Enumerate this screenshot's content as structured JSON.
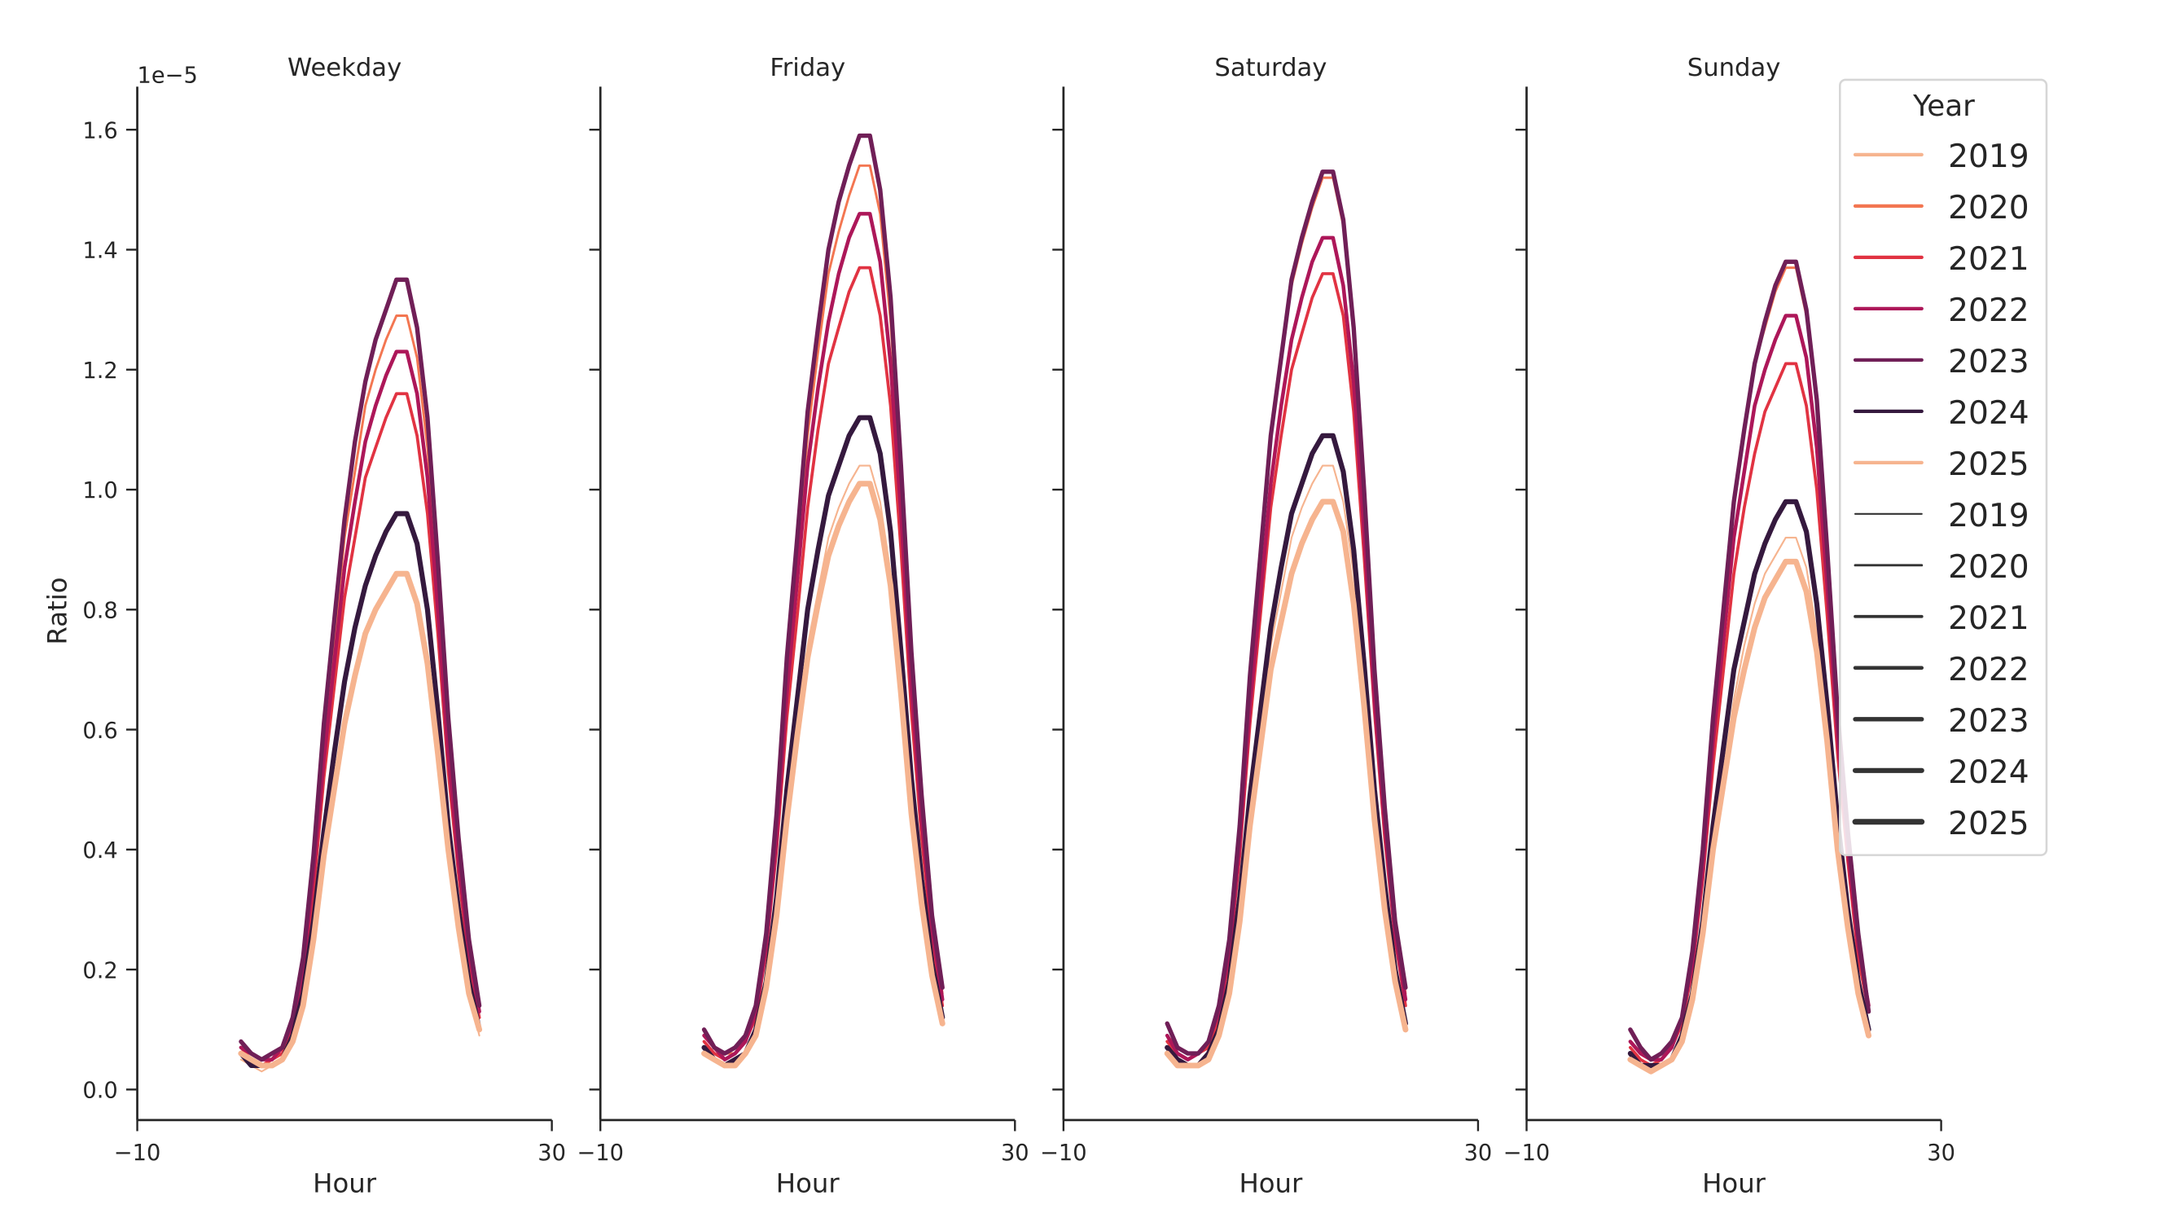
{
  "chart_data": {
    "type": "line",
    "ylabel": "Ratio",
    "xlabel": "Hour",
    "y_offset_label": "1e−5",
    "y_scale": 1e-05,
    "xlim": [
      -10,
      30
    ],
    "ylim": [
      -0.05,
      1.67
    ],
    "x_ticks": [
      -10,
      30
    ],
    "x_tick_labels": [
      "−10",
      "30"
    ],
    "y_ticks": [
      0.0,
      0.2,
      0.4,
      0.6,
      0.8,
      1.0,
      1.2,
      1.4,
      1.6
    ],
    "y_tick_labels": [
      "0.0",
      "0.2",
      "0.4",
      "0.6",
      "0.8",
      "1.0",
      "1.2",
      "1.4",
      "1.6"
    ],
    "grid": false,
    "legend": {
      "title": "Year",
      "placement": "top-right",
      "hue_entries": [
        {
          "label": "2019",
          "color": "#f6b48f"
        },
        {
          "label": "2020",
          "color": "#f37651"
        },
        {
          "label": "2021",
          "color": "#e13342"
        },
        {
          "label": "2022",
          "color": "#ad1759"
        },
        {
          "label": "2023",
          "color": "#701f57"
        },
        {
          "label": "2024",
          "color": "#35193e"
        },
        {
          "label": "2025",
          "color": "#f6b48f"
        }
      ],
      "size_entries": [
        {
          "label": "2019",
          "width": 1
        },
        {
          "label": "2020",
          "width": 1.5
        },
        {
          "label": "2021",
          "width": 2
        },
        {
          "label": "2022",
          "width": 2.5
        },
        {
          "label": "2023",
          "width": 3
        },
        {
          "label": "2024",
          "width": 3.5
        },
        {
          "label": "2025",
          "width": 4
        }
      ]
    },
    "x": [
      0,
      1,
      2,
      3,
      4,
      5,
      6,
      7,
      8,
      9,
      10,
      11,
      12,
      13,
      14,
      15,
      16,
      17,
      18,
      19,
      20,
      21,
      22,
      23
    ],
    "panels": [
      {
        "title": "Weekday",
        "series": [
          {
            "name": "2019",
            "values": [
              0.05,
              0.04,
              0.03,
              0.04,
              0.05,
              0.08,
              0.14,
              0.25,
              0.39,
              0.5,
              0.61,
              0.69,
              0.76,
              0.8,
              0.83,
              0.86,
              0.86,
              0.81,
              0.71,
              0.56,
              0.4,
              0.27,
              0.16,
              0.09
            ]
          },
          {
            "name": "2020",
            "values": [
              0.08,
              0.06,
              0.05,
              0.05,
              0.07,
              0.12,
              0.21,
              0.37,
              0.58,
              0.75,
              0.92,
              1.03,
              1.14,
              1.2,
              1.25,
              1.29,
              1.29,
              1.22,
              1.07,
              0.84,
              0.59,
              0.4,
              0.24,
              0.14
            ]
          },
          {
            "name": "2021",
            "values": [
              0.07,
              0.05,
              0.04,
              0.05,
              0.06,
              0.1,
              0.19,
              0.33,
              0.52,
              0.67,
              0.82,
              0.92,
              1.02,
              1.07,
              1.12,
              1.16,
              1.16,
              1.09,
              0.96,
              0.76,
              0.53,
              0.36,
              0.21,
              0.12
            ]
          },
          {
            "name": "2022",
            "values": [
              0.07,
              0.06,
              0.05,
              0.05,
              0.07,
              0.11,
              0.2,
              0.36,
              0.55,
              0.71,
              0.87,
              0.98,
              1.08,
              1.14,
              1.19,
              1.23,
              1.23,
              1.16,
              1.02,
              0.8,
              0.56,
              0.38,
              0.23,
              0.13
            ]
          },
          {
            "name": "2023",
            "values": [
              0.08,
              0.06,
              0.05,
              0.06,
              0.07,
              0.12,
              0.22,
              0.39,
              0.61,
              0.78,
              0.95,
              1.08,
              1.18,
              1.25,
              1.3,
              1.35,
              1.35,
              1.27,
              1.12,
              0.88,
              0.62,
              0.42,
              0.25,
              0.14
            ]
          },
          {
            "name": "2024",
            "values": [
              0.06,
              0.04,
              0.04,
              0.04,
              0.05,
              0.09,
              0.16,
              0.28,
              0.43,
              0.56,
              0.68,
              0.77,
              0.84,
              0.89,
              0.93,
              0.96,
              0.96,
              0.91,
              0.8,
              0.63,
              0.44,
              0.3,
              0.18,
              0.1
            ]
          },
          {
            "name": "2025",
            "values": [
              0.06,
              0.05,
              0.04,
              0.04,
              0.05,
              0.08,
              0.14,
              0.25,
              0.39,
              0.5,
              0.61,
              0.69,
              0.76,
              0.8,
              0.83,
              0.86,
              0.86,
              0.81,
              0.71,
              0.56,
              0.4,
              0.27,
              0.16,
              0.1
            ]
          }
        ]
      },
      {
        "title": "Friday",
        "series": [
          {
            "name": "2019",
            "values": [
              0.06,
              0.05,
              0.04,
              0.04,
              0.06,
              0.09,
              0.17,
              0.3,
              0.47,
              0.6,
              0.74,
              0.83,
              0.92,
              0.97,
              1.01,
              1.04,
              1.04,
              0.98,
              0.86,
              0.68,
              0.48,
              0.32,
              0.19,
              0.11
            ]
          },
          {
            "name": "2020",
            "values": [
              0.09,
              0.07,
              0.06,
              0.06,
              0.08,
              0.14,
              0.25,
              0.45,
              0.69,
              0.89,
              1.09,
              1.23,
              1.36,
              1.43,
              1.49,
              1.54,
              1.54,
              1.46,
              1.28,
              1.01,
              0.71,
              0.48,
              0.28,
              0.16
            ]
          },
          {
            "name": "2021",
            "values": [
              0.08,
              0.06,
              0.05,
              0.06,
              0.08,
              0.12,
              0.23,
              0.4,
              0.62,
              0.79,
              0.97,
              1.1,
              1.21,
              1.27,
              1.33,
              1.37,
              1.37,
              1.29,
              1.14,
              0.9,
              0.63,
              0.42,
              0.25,
              0.14
            ]
          },
          {
            "name": "2022",
            "values": [
              0.09,
              0.07,
              0.05,
              0.06,
              0.08,
              0.13,
              0.24,
              0.42,
              0.66,
              0.85,
              1.04,
              1.17,
              1.28,
              1.36,
              1.42,
              1.46,
              1.46,
              1.38,
              1.21,
              0.96,
              0.67,
              0.45,
              0.27,
              0.15
            ]
          },
          {
            "name": "2023",
            "values": [
              0.1,
              0.07,
              0.06,
              0.07,
              0.09,
              0.14,
              0.26,
              0.46,
              0.72,
              0.92,
              1.13,
              1.27,
              1.4,
              1.48,
              1.54,
              1.59,
              1.59,
              1.5,
              1.32,
              1.04,
              0.73,
              0.49,
              0.29,
              0.17
            ]
          },
          {
            "name": "2024",
            "values": [
              0.07,
              0.05,
              0.04,
              0.05,
              0.06,
              0.1,
              0.18,
              0.32,
              0.5,
              0.65,
              0.8,
              0.9,
              0.99,
              1.04,
              1.09,
              1.12,
              1.12,
              1.06,
              0.93,
              0.73,
              0.52,
              0.35,
              0.21,
              0.12
            ]
          },
          {
            "name": "2025",
            "values": [
              0.06,
              0.05,
              0.04,
              0.04,
              0.06,
              0.09,
              0.17,
              0.29,
              0.45,
              0.59,
              0.72,
              0.81,
              0.89,
              0.94,
              0.98,
              1.01,
              1.01,
              0.95,
              0.84,
              0.66,
              0.46,
              0.31,
              0.19,
              0.11
            ]
          }
        ]
      },
      {
        "title": "Saturday",
        "series": [
          {
            "name": "2019",
            "values": [
              0.06,
              0.04,
              0.04,
              0.04,
              0.06,
              0.09,
              0.17,
              0.3,
              0.47,
              0.6,
              0.74,
              0.83,
              0.92,
              0.97,
              1.01,
              1.04,
              1.04,
              0.98,
              0.86,
              0.68,
              0.48,
              0.32,
              0.19,
              0.11
            ]
          },
          {
            "name": "2020",
            "values": [
              0.09,
              0.07,
              0.06,
              0.06,
              0.08,
              0.14,
              0.25,
              0.44,
              0.68,
              0.88,
              1.08,
              1.22,
              1.34,
              1.41,
              1.47,
              1.52,
              1.52,
              1.44,
              1.26,
              1.0,
              0.7,
              0.47,
              0.28,
              0.16
            ]
          },
          {
            "name": "2021",
            "values": [
              0.08,
              0.06,
              0.05,
              0.06,
              0.07,
              0.12,
              0.22,
              0.39,
              0.61,
              0.79,
              0.97,
              1.09,
              1.2,
              1.26,
              1.32,
              1.36,
              1.36,
              1.29,
              1.13,
              0.89,
              0.63,
              0.42,
              0.25,
              0.14
            ]
          },
          {
            "name": "2022",
            "values": [
              0.09,
              0.06,
              0.05,
              0.06,
              0.08,
              0.13,
              0.23,
              0.41,
              0.64,
              0.82,
              1.01,
              1.14,
              1.25,
              1.32,
              1.38,
              1.42,
              1.42,
              1.34,
              1.18,
              0.93,
              0.65,
              0.44,
              0.26,
              0.15
            ]
          },
          {
            "name": "2023",
            "values": [
              0.11,
              0.07,
              0.06,
              0.06,
              0.08,
              0.14,
              0.25,
              0.44,
              0.69,
              0.89,
              1.09,
              1.22,
              1.35,
              1.42,
              1.48,
              1.53,
              1.53,
              1.45,
              1.27,
              1.0,
              0.7,
              0.47,
              0.28,
              0.17
            ]
          },
          {
            "name": "2024",
            "values": [
              0.07,
              0.05,
              0.04,
              0.04,
              0.06,
              0.1,
              0.18,
              0.32,
              0.49,
              0.63,
              0.77,
              0.87,
              0.96,
              1.01,
              1.06,
              1.09,
              1.09,
              1.03,
              0.9,
              0.71,
              0.5,
              0.34,
              0.2,
              0.11
            ]
          },
          {
            "name": "2025",
            "values": [
              0.06,
              0.04,
              0.04,
              0.04,
              0.05,
              0.09,
              0.16,
              0.28,
              0.44,
              0.57,
              0.7,
              0.78,
              0.86,
              0.91,
              0.95,
              0.98,
              0.98,
              0.93,
              0.81,
              0.64,
              0.45,
              0.3,
              0.18,
              0.1
            ]
          }
        ]
      },
      {
        "title": "Sunday",
        "series": [
          {
            "name": "2019",
            "values": [
              0.06,
              0.04,
              0.03,
              0.04,
              0.05,
              0.08,
              0.15,
              0.27,
              0.41,
              0.53,
              0.65,
              0.74,
              0.81,
              0.86,
              0.89,
              0.92,
              0.92,
              0.87,
              0.76,
              0.6,
              0.42,
              0.29,
              0.17,
              0.1
            ]
          },
          {
            "name": "2020",
            "values": [
              0.08,
              0.06,
              0.05,
              0.06,
              0.08,
              0.12,
              0.23,
              0.4,
              0.62,
              0.79,
              0.97,
              1.1,
              1.21,
              1.27,
              1.33,
              1.37,
              1.37,
              1.29,
              1.14,
              0.9,
              0.63,
              0.42,
              0.25,
              0.14
            ]
          },
          {
            "name": "2021",
            "values": [
              0.07,
              0.05,
              0.04,
              0.05,
              0.07,
              0.11,
              0.2,
              0.35,
              0.54,
              0.7,
              0.86,
              0.97,
              1.06,
              1.13,
              1.17,
              1.21,
              1.21,
              1.14,
              1.0,
              0.79,
              0.56,
              0.38,
              0.22,
              0.13
            ]
          },
          {
            "name": "2022",
            "values": [
              0.08,
              0.06,
              0.05,
              0.05,
              0.07,
              0.12,
              0.21,
              0.37,
              0.58,
              0.75,
              0.92,
              1.03,
              1.14,
              1.2,
              1.25,
              1.29,
              1.29,
              1.22,
              1.07,
              0.84,
              0.59,
              0.4,
              0.24,
              0.14
            ]
          },
          {
            "name": "2023",
            "values": [
              0.1,
              0.07,
              0.05,
              0.06,
              0.08,
              0.12,
              0.23,
              0.4,
              0.62,
              0.8,
              0.98,
              1.1,
              1.21,
              1.28,
              1.34,
              1.38,
              1.38,
              1.3,
              1.15,
              0.9,
              0.63,
              0.43,
              0.26,
              0.13
            ]
          },
          {
            "name": "2024",
            "values": [
              0.06,
              0.04,
              0.04,
              0.04,
              0.05,
              0.09,
              0.16,
              0.28,
              0.44,
              0.57,
              0.7,
              0.78,
              0.86,
              0.91,
              0.95,
              0.98,
              0.98,
              0.93,
              0.81,
              0.64,
              0.45,
              0.3,
              0.18,
              0.1
            ]
          },
          {
            "name": "2025",
            "values": [
              0.05,
              0.04,
              0.03,
              0.04,
              0.05,
              0.08,
              0.15,
              0.26,
              0.4,
              0.51,
              0.62,
              0.7,
              0.77,
              0.82,
              0.85,
              0.88,
              0.88,
              0.83,
              0.73,
              0.58,
              0.4,
              0.27,
              0.16,
              0.09
            ]
          }
        ]
      }
    ]
  }
}
